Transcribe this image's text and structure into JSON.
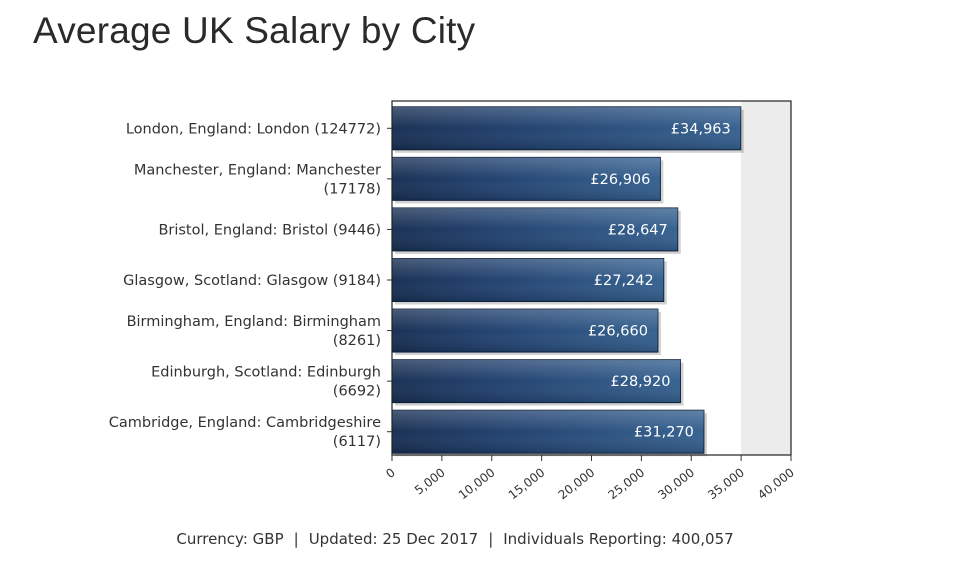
{
  "page": {
    "title": "Average UK Salary by City"
  },
  "footer": {
    "currency": "Currency: GBP",
    "updated": "Updated: 25 Dec 2017",
    "individuals": "Individuals Reporting: 400,057",
    "separator": "|"
  },
  "chart_data": {
    "type": "bar",
    "orientation": "horizontal",
    "title": "Average UK Salary by City",
    "categories": [
      [
        "London, England: London (124772)"
      ],
      [
        "Manchester, England: Manchester",
        "(17178)"
      ],
      [
        "Bristol, England: Bristol (9446)"
      ],
      [
        "Glasgow, Scotland: Glasgow (9184)"
      ],
      [
        "Birmingham, England: Birmingham",
        "(8261)"
      ],
      [
        "Edinburgh, Scotland: Edinburgh",
        "(6692)"
      ],
      [
        "Cambridge, England: Cambridgeshire",
        "(6117)"
      ]
    ],
    "values": [
      34963,
      26906,
      28647,
      27242,
      26660,
      28920,
      31270
    ],
    "value_labels": [
      "£34,963",
      "£26,906",
      "£28,647",
      "£27,242",
      "£26,660",
      "£28,920",
      "£31,270"
    ],
    "xlim": [
      0,
      40000
    ],
    "xticks": [
      0,
      5000,
      10000,
      15000,
      20000,
      25000,
      30000,
      35000,
      40000
    ],
    "xtick_labels": [
      "0",
      "5,000",
      "10,000",
      "15,000",
      "20,000",
      "25,000",
      "30,000",
      "35,000",
      "40,000"
    ],
    "xlabel": "",
    "ylabel": "",
    "grid": false,
    "bar_color": "#2b4f80",
    "bar_dark_color": "#162e52",
    "shaded_band_color": "#ececec",
    "legend": "none"
  }
}
